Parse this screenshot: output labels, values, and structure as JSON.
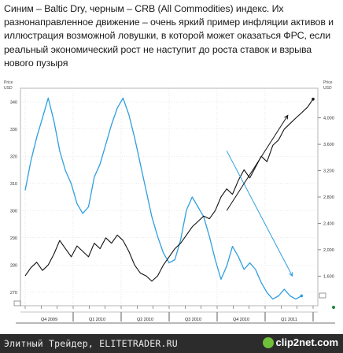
{
  "caption": "Синим – Baltic Dry, черным – CRB (All Commodities) индекс. Их разнонаправленное движение – очень яркий пример инфляции активов и иллюстрация возможной ловушки, в которой может оказаться ФРС, если реальный экономический рост не наступит до роста ставок и взрыва нового пузыря",
  "footer": {
    "site_text": "Элитный Трейдер, ELITETRADER.RU",
    "brand": "clip2net.com"
  },
  "colors": {
    "crb_line": "#111111",
    "bdi_line": "#2f9fde",
    "grid": "#d6d6d6",
    "footer_bg": "#2c2c2c"
  },
  "chart_data": {
    "type": "line",
    "left_axis_title": "Price\nUSD",
    "right_axis_title": "Price\nUSD",
    "left_ticks": [
      "340",
      "330",
      "320",
      "310",
      "300",
      "290",
      "280",
      "270"
    ],
    "left_ticks_num": [
      340,
      330,
      320,
      310,
      300,
      290,
      280,
      270
    ],
    "left_ylim": [
      265,
      345
    ],
    "right_ticks": [
      "4,000",
      "3,600",
      "3,200",
      "2,800",
      "2,400",
      "2,000",
      "1,600"
    ],
    "right_ticks_num": [
      4000,
      3600,
      3200,
      2800,
      2400,
      2000,
      1600
    ],
    "right_ylim": [
      1150,
      4450
    ],
    "quarter_labels": [
      "Q4 2009",
      "Q1 2010",
      "Q2 2010",
      "Q3 2010",
      "Q4 2010",
      "Q1 2011"
    ],
    "x_range": [
      0,
      25
    ],
    "series": [
      {
        "key": "bdi",
        "axis": "right",
        "x": [
          0,
          0.5,
          1,
          1.5,
          2,
          2.5,
          3,
          3.5,
          4,
          4.5,
          5,
          5.5,
          6,
          6.5,
          7,
          7.5,
          8,
          8.5,
          9,
          9.5,
          10,
          10.5,
          11,
          11.5,
          12,
          12.5,
          13,
          13.5,
          14,
          14.5,
          15,
          15.5,
          16,
          16.5,
          17,
          17.5,
          18,
          18.5,
          19,
          19.5,
          20,
          20.5,
          21,
          21.5,
          22,
          22.5,
          23,
          23.5,
          24
        ],
        "values": [
          2900,
          3350,
          3700,
          4000,
          4300,
          3950,
          3500,
          3200,
          3000,
          2700,
          2550,
          2650,
          3100,
          3300,
          3600,
          3900,
          4150,
          4300,
          4050,
          3700,
          3300,
          2900,
          2500,
          2200,
          1950,
          1800,
          1850,
          2150,
          2600,
          2800,
          2650,
          2500,
          2200,
          1850,
          1550,
          1750,
          2050,
          1900,
          1700,
          1800,
          1700,
          1500,
          1350,
          1250,
          1300,
          1400,
          1300,
          1250,
          1300
        ]
      },
      {
        "key": "crb",
        "axis": "left",
        "x": [
          0,
          0.5,
          1,
          1.5,
          2,
          2.5,
          3,
          3.5,
          4,
          4.5,
          5,
          5.5,
          6,
          6.5,
          7,
          7.5,
          8,
          8.5,
          9,
          9.5,
          10,
          10.5,
          11,
          11.5,
          12,
          12.5,
          13,
          13.5,
          14,
          14.5,
          15,
          15.5,
          16,
          16.5,
          17,
          17.5,
          18,
          18.5,
          19,
          19.5,
          20,
          20.5,
          21,
          21.5,
          22,
          22.5,
          23,
          23.5,
          24,
          24.5,
          25
        ],
        "values": [
          276,
          279,
          281,
          278,
          280,
          284,
          289,
          286,
          283,
          287,
          285,
          283,
          288,
          286,
          290,
          288,
          291,
          289,
          285,
          280,
          277,
          276,
          274,
          276,
          280,
          283,
          286,
          288,
          291,
          294,
          296,
          298,
          297,
          300,
          305,
          308,
          306,
          311,
          315,
          312,
          316,
          320,
          318,
          324,
          326,
          330,
          332,
          334,
          336,
          338,
          341
        ]
      }
    ],
    "trend_lines": [
      {
        "axis": "right",
        "from": [
          17.5,
          3500
        ],
        "to": [
          23.2,
          1600
        ]
      },
      {
        "axis": "left",
        "from": [
          17.5,
          300
        ],
        "to": [
          22.8,
          335
        ]
      }
    ]
  }
}
